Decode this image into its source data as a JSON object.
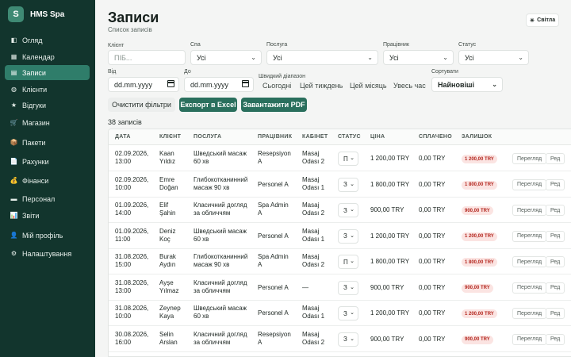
{
  "sidebar": {
    "brand": {
      "logo_letter": "S",
      "name": "HMS Spa"
    },
    "items": [
      {
        "label": "Огляд",
        "icon": "◧"
      },
      {
        "label": "Календар",
        "icon": "▦"
      },
      {
        "label": "Записи",
        "icon": "▤",
        "active": true
      },
      {
        "label": "Клієнти",
        "icon": "◍"
      },
      {
        "label": "Відгуки",
        "icon": "★"
      },
      {
        "label": "Магазин",
        "icon": "🛒"
      },
      {
        "label": "Пакети",
        "icon": "📦"
      },
      {
        "label": "Рахунки",
        "icon": "📄"
      },
      {
        "label": "Фінанси",
        "icon": "💰"
      },
      {
        "label": "Персонал",
        "icon": "▬"
      },
      {
        "label": "Звіти",
        "icon": "📊"
      },
      {
        "label": "Мій профіль",
        "icon": "👤"
      },
      {
        "label": "Налаштування",
        "icon": "⚙"
      }
    ]
  },
  "header": {
    "title": "Записи",
    "subtitle": "Список записів",
    "theme_label": "Світла",
    "theme_icon": "☀"
  },
  "filters": {
    "client": {
      "label": "Клієнт",
      "placeholder": "ПІБ..."
    },
    "spa": {
      "label": "Спа",
      "value": "Усі"
    },
    "service": {
      "label": "Послуга",
      "value": "Усі"
    },
    "employee": {
      "label": "Працівник",
      "value": "Усі"
    },
    "status": {
      "label": "Статус",
      "value": "Усі"
    },
    "date_from": {
      "label": "Від",
      "value": "dd.mm.yyyy"
    },
    "date_to": {
      "label": "До",
      "value": "dd.mm.yyyy"
    },
    "quick_range_label": "Швидкий діапазон",
    "quick_range": [
      "Сьогодні",
      "Цей тиждень",
      "Цей місяць",
      "Увесь час"
    ],
    "sort": {
      "label": "Сортувати",
      "value": "Найновіші"
    }
  },
  "actions": {
    "clear": "Очистити фільтри",
    "export_excel": "Експорт в Excel",
    "download_pdf": "Завантажити PDF"
  },
  "count_text": "38 записів",
  "table": {
    "columns": [
      "ДАТА",
      "КЛІЄНТ",
      "ПОСЛУГА",
      "ПРАЦІВНИК",
      "КАБІНЕТ",
      "СТАТУС",
      "ЦІНА",
      "СПЛАЧЕНО",
      "ЗАЛИШОК"
    ],
    "row_actions": [
      "Перегляд",
      "Ред"
    ],
    "rows": [
      {
        "date": [
          "02.09.2026,",
          "13:00"
        ],
        "client": [
          "Kaan",
          "Yıldız"
        ],
        "service": [
          "Шведський масаж",
          "60 хв"
        ],
        "employee": [
          "Resepsiyon",
          "A"
        ],
        "room": [
          "Masaj",
          "Odası 2"
        ],
        "status": "П",
        "price": "1 200,00 TRY",
        "paid": "0,00 TRY",
        "balance": "1 200,00 TRY"
      },
      {
        "date": [
          "02.09.2026,",
          "10:00"
        ],
        "client": [
          "Emre",
          "Doğan"
        ],
        "service": [
          "Глибокотканинний",
          "масаж 90 хв"
        ],
        "employee": [
          "Personel A"
        ],
        "room": [
          "Masaj",
          "Odası 1"
        ],
        "status": "З",
        "price": "1 800,00 TRY",
        "paid": "0,00 TRY",
        "balance": "1 800,00 TRY"
      },
      {
        "date": [
          "01.09.2026,",
          "14:00"
        ],
        "client": [
          "Elif",
          "Şahin"
        ],
        "service": [
          "Класичний догляд",
          "за обличчям"
        ],
        "employee": [
          "Spa Admin",
          "A"
        ],
        "room": [
          "Masaj",
          "Odası 2"
        ],
        "status": "З",
        "price": "900,00 TRY",
        "paid": "0,00 TRY",
        "balance": "900,00 TRY"
      },
      {
        "date": [
          "01.09.2026,",
          "11:00"
        ],
        "client": [
          "Deniz",
          "Koç"
        ],
        "service": [
          "Шведський масаж",
          "60 хв"
        ],
        "employee": [
          "Personel A"
        ],
        "room": [
          "Masaj",
          "Odası 1"
        ],
        "status": "З",
        "price": "1 200,00 TRY",
        "paid": "0,00 TRY",
        "balance": "1 200,00 TRY"
      },
      {
        "date": [
          "31.08.2026,",
          "15:00"
        ],
        "client": [
          "Burak",
          "Aydın"
        ],
        "service": [
          "Глибокотканинний",
          "масаж 90 хв"
        ],
        "employee": [
          "Spa Admin",
          "A"
        ],
        "room": [
          "Masaj",
          "Odası 2"
        ],
        "status": "П",
        "price": "1 800,00 TRY",
        "paid": "0,00 TRY",
        "balance": "1 800,00 TRY"
      },
      {
        "date": [
          "31.08.2026,",
          "13:00"
        ],
        "client": [
          "Ayşe",
          "Yılmaz"
        ],
        "service": [
          "Класичний догляд",
          "за обличчям"
        ],
        "employee": [
          "Personel A"
        ],
        "room": [
          "—"
        ],
        "status": "З",
        "price": "900,00 TRY",
        "paid": "0,00 TRY",
        "balance": "900,00 TRY"
      },
      {
        "date": [
          "31.08.2026,",
          "10:00"
        ],
        "client": [
          "Zeynep",
          "Kaya"
        ],
        "service": [
          "Шведський масаж",
          "60 хв"
        ],
        "employee": [
          "Personel A"
        ],
        "room": [
          "Masaj",
          "Odası 1"
        ],
        "status": "З",
        "price": "1 200,00 TRY",
        "paid": "0,00 TRY",
        "balance": "1 200,00 TRY"
      },
      {
        "date": [
          "30.08.2026,",
          "16:00"
        ],
        "client": [
          "Selin",
          "Arslan"
        ],
        "service": [
          "Класичний догляд",
          "за обличчям"
        ],
        "employee": [
          "Resepsiyon",
          "A"
        ],
        "room": [
          "Masaj",
          "Odası 2"
        ],
        "status": "З",
        "price": "900,00 TRY",
        "paid": "0,00 TRY",
        "balance": "900,00 TRY"
      }
    ]
  },
  "colors": {
    "sidebar_bg": "#12352d",
    "active": "#2f7d6a",
    "primary_button": "#2a6f5d",
    "badge_bg": "#fbe4e2",
    "badge_text": "#b3261e"
  }
}
